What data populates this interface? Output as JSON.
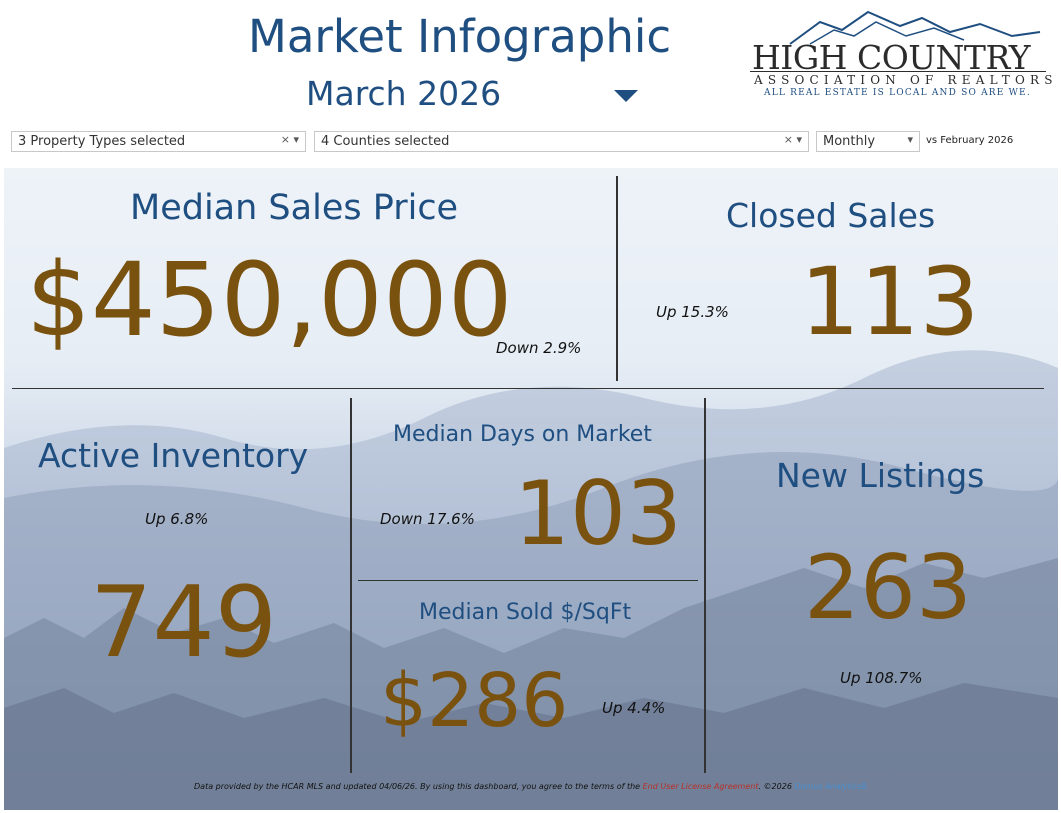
{
  "header": {
    "title": "Market Infographic",
    "period": "March 2026",
    "logo": {
      "name": "HIGH COUNTRY",
      "association": "ASSOCIATION OF REALTORS",
      "tagline": "ALL REAL ESTATE IS LOCAL AND SO ARE WE."
    }
  },
  "filters": {
    "property_types": "3 Property Types selected",
    "counties": "4 Counties selected",
    "interval": "Monthly",
    "comparison": "vs February 2026"
  },
  "metrics": {
    "median_sales_price": {
      "label": "Median Sales Price",
      "value": "$450,000",
      "change": "Down 2.9%"
    },
    "closed_sales": {
      "label": "Closed Sales",
      "value": "113",
      "change": "Up 15.3%"
    },
    "active_inventory": {
      "label": "Active Inventory",
      "value": "749",
      "change": "Up 6.8%"
    },
    "median_dom": {
      "label": "Median Days on Market",
      "value": "103",
      "change": "Down 17.6%"
    },
    "median_sqft": {
      "label": "Median Sold $/SqFt",
      "value": "$286",
      "change": "Up 4.4%"
    },
    "new_listings": {
      "label": "New Listings",
      "value": "263",
      "change": "Up 108.7%"
    }
  },
  "footer": {
    "text": "Data provided by the HCAR MLS and updated 04/06/26.  By using this dashboard, you agree to the terms of the",
    "eula": "End User License Agreement",
    "copyright": ".  ©2026",
    "brand": "Domus AnalyticsB"
  },
  "colors": {
    "navy": "#1f4e80",
    "gold": "#7a5210"
  },
  "icons": {
    "clear": "×",
    "dropdown": "▾"
  }
}
